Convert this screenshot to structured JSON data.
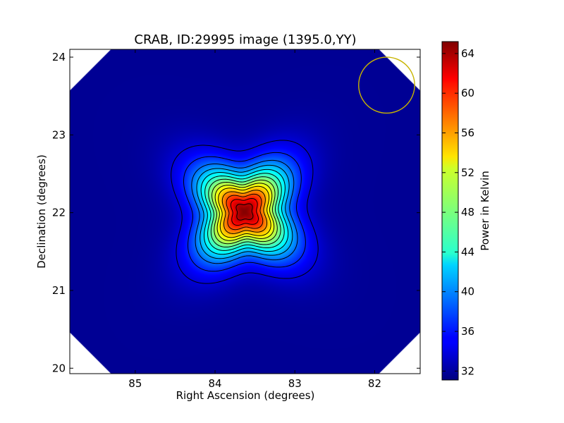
{
  "chart_data": {
    "type": "heatmap",
    "title": "CRAB, ID:29995 image (1395.0,YY)",
    "xlabel": "Right Ascension (degrees)",
    "ylabel": "Declination (degrees)",
    "colorbar_label": "Power in Kelvin",
    "colormap": "jet",
    "x_axis_inverted": true,
    "xlim": [
      85.82,
      81.43
    ],
    "ylim": [
      19.93,
      24.1
    ],
    "x_ticks": [
      85,
      84,
      83,
      82
    ],
    "y_ticks": [
      20,
      21,
      22,
      23,
      24
    ],
    "colorbar_range": [
      31.1,
      65.2
    ],
    "colorbar_ticks": [
      32,
      36,
      40,
      44,
      48,
      52,
      56,
      60,
      64
    ],
    "background_value": 31.8,
    "source": {
      "name": "CRAB",
      "ra": 83.63,
      "dec": 22.01,
      "peak_value": 65.0
    },
    "contour_levels": [
      34,
      36.5,
      39,
      41,
      43,
      45,
      47,
      49,
      51,
      53,
      55.5,
      58,
      60.5,
      63
    ],
    "beam_circle": {
      "ra": 81.85,
      "dec": 23.64,
      "radius_deg": 0.36,
      "color": "#c8b400"
    },
    "grid": false
  }
}
